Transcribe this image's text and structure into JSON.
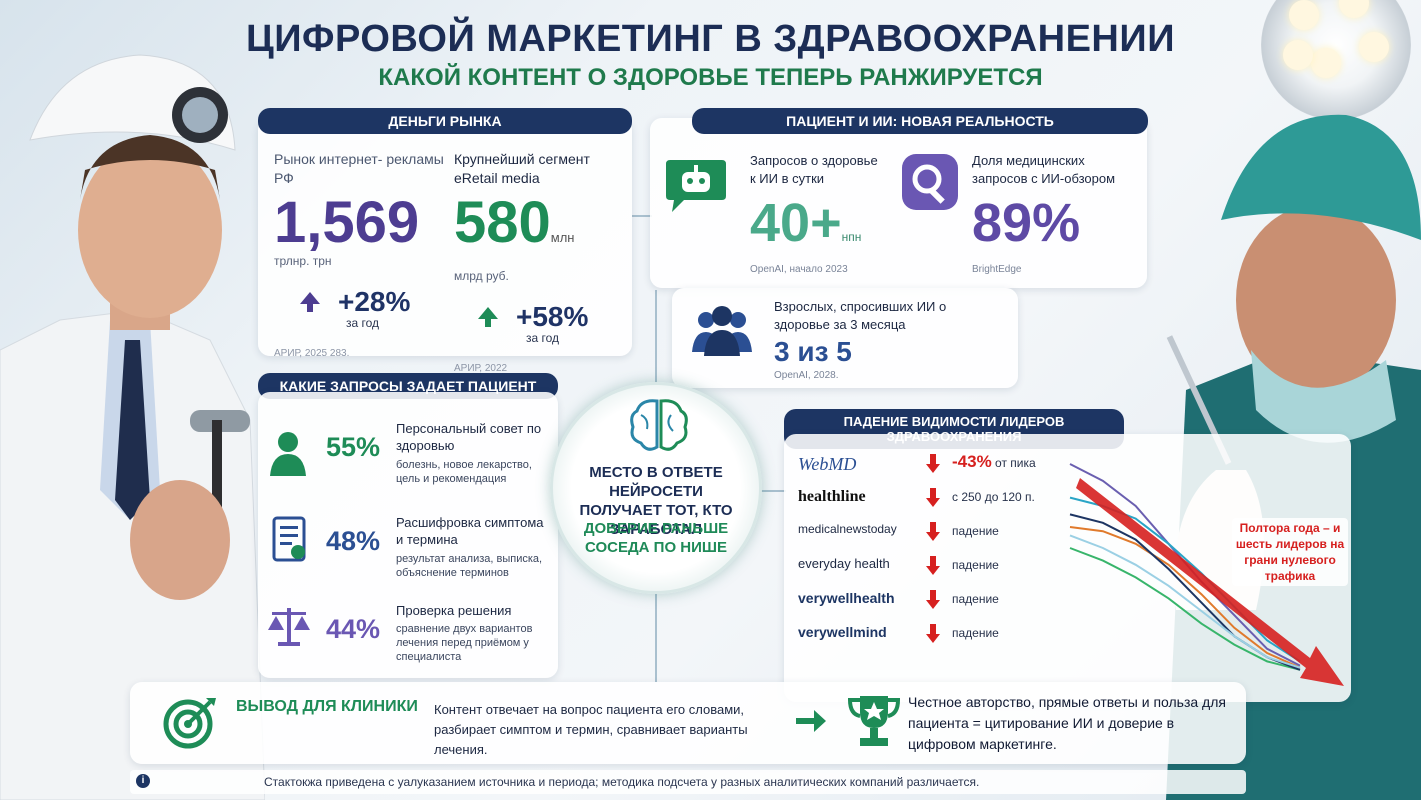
{
  "title": "ЦИФРОВОЙ МАРКЕТИНГ В ЗДРАВООХРАНЕНИИ",
  "subtitle": "КАКОЙ КОНТЕНТ О ЗДОРОВЬЕ ТЕПЕРЬ РАНЖИРУЕТСЯ",
  "colors": {
    "navy": "#1d3563",
    "green": "#1e8c57",
    "purple": "#4d3d91",
    "red": "#d6201f"
  },
  "money": {
    "header": "ДЕНЬГИ РЫНКА",
    "left": {
      "label": "Рынок интернет- рекламы РФ",
      "value": "1,569",
      "unit": "трлнр. трн",
      "growth": "+28%",
      "per": "за год",
      "source": "АРИР, 2025 283."
    },
    "right": {
      "label": "Крупнейший сегмент eRetail media",
      "value": "580",
      "value_suffix": "млн",
      "unit": "млрд руб.",
      "growth": "+58%",
      "per": "за год",
      "source": "АРИР, 2022"
    }
  },
  "patient": {
    "header": "ПАЦИЕНТ И ИИ: НОВАЯ РЕАЛЬНОСТЬ",
    "queries": {
      "label": "Запросов о здоровье к ИИ в сутки",
      "value": "40+",
      "value_suffix": "нпн",
      "source": "OpenAI, начало 2023",
      "icon": "robot-chat-icon"
    },
    "share": {
      "label": "Доля медицинских запросов с ИИ-обзором",
      "value": "89%",
      "source": "BrightEdge",
      "icon": "magnifier-icon"
    },
    "adults": {
      "label": "Взрослых, спросивших ИИ о здоровье за 3 месяца",
      "value": "3 из 5",
      "source": "OpenAI, 2028.",
      "icon": "people-icon"
    }
  },
  "questions": {
    "header": "КАКИЕ ЗАПРОСЫ ЗАДАЕТ ПАЦИЕНТ",
    "items": [
      {
        "pct": "55%",
        "title": "Персональный совет по здоровью",
        "desc": "болезнь, новое лекарство, цель и рекомендация",
        "icon": "person-icon"
      },
      {
        "pct": "48%",
        "title": "Расшифровка симптома и термина",
        "desc": "результат анализа, выписка, объяснение терминов",
        "icon": "document-icon"
      },
      {
        "pct": "44%",
        "title": "Проверка решения",
        "desc": "сравнение двух вариантов лечения перед приёмом у специалиста",
        "icon": "scales-icon"
      }
    ]
  },
  "center": {
    "line1": "МЕСТО В ОТВЕТЕ НЕЙРОСЕТИ ПОЛУЧАЕТ ТОТ, КТО ЗАРАБОТАЛ",
    "line2": "ДОВЕРИЕ РАНЬШЕ СОСЕДА ПО НИШЕ",
    "icon": "brain-icon"
  },
  "leaders": {
    "header": "ПАДЕНИЕ ВИДИМОСТИ ЛИДЕРОВ ЗДРАВООХРАНЕНИЯ",
    "rows": [
      {
        "name": "WebMD",
        "value": "-43%",
        "note": "от пика"
      },
      {
        "name": "healthline",
        "value": "",
        "note": "с 250 до 120 п."
      },
      {
        "name": "medicalnewstoday",
        "value": "",
        "note": "падение"
      },
      {
        "name": "everyday health",
        "value": "",
        "note": "падение"
      },
      {
        "name": "verywellhealth",
        "value": "",
        "note": "падение"
      },
      {
        "name": "verywellmind",
        "value": "",
        "note": "падение"
      }
    ],
    "callout": "Полтора года – и шесть лидеров на грани нулевого трафика"
  },
  "chart_data": {
    "type": "line",
    "series": [
      {
        "color": "#6a5fb0",
        "values": [
          100,
          92,
          80,
          62,
          44,
          28,
          12,
          4
        ]
      },
      {
        "color": "#2aa5c6",
        "values": [
          84,
          80,
          74,
          62,
          48,
          32,
          16,
          6
        ]
      },
      {
        "color": "#e07a2c",
        "values": [
          70,
          68,
          62,
          52,
          38,
          22,
          10,
          3
        ]
      },
      {
        "color": "#38b56b",
        "values": [
          60,
          54,
          46,
          36,
          24,
          14,
          6,
          2
        ]
      },
      {
        "color": "#1d3563",
        "values": [
          76,
          72,
          64,
          50,
          34,
          18,
          8,
          2
        ]
      },
      {
        "color": "#9bd0e4",
        "values": [
          66,
          60,
          52,
          42,
          30,
          18,
          8,
          3
        ]
      }
    ]
  },
  "conclusion": {
    "title": "ВЫВОД ДЛЯ КЛИНИКИ",
    "text": "Контент отвечает на вопрос пациента его словами, разбирает симптом и термин, сравнивает варианты лечения.",
    "result": "Честное авторство, прямые ответы и польза для пациента = цитирование ИИ и доверие в цифровом маркетинге.",
    "icon_left": "target-icon",
    "icon_right": "trophy-icon"
  },
  "footer": {
    "text": "Стактокжа приведена с уалуказанием источника и периода; методика подсчета у разных аналитических компаний различается.",
    "icon": "info-icon"
  }
}
